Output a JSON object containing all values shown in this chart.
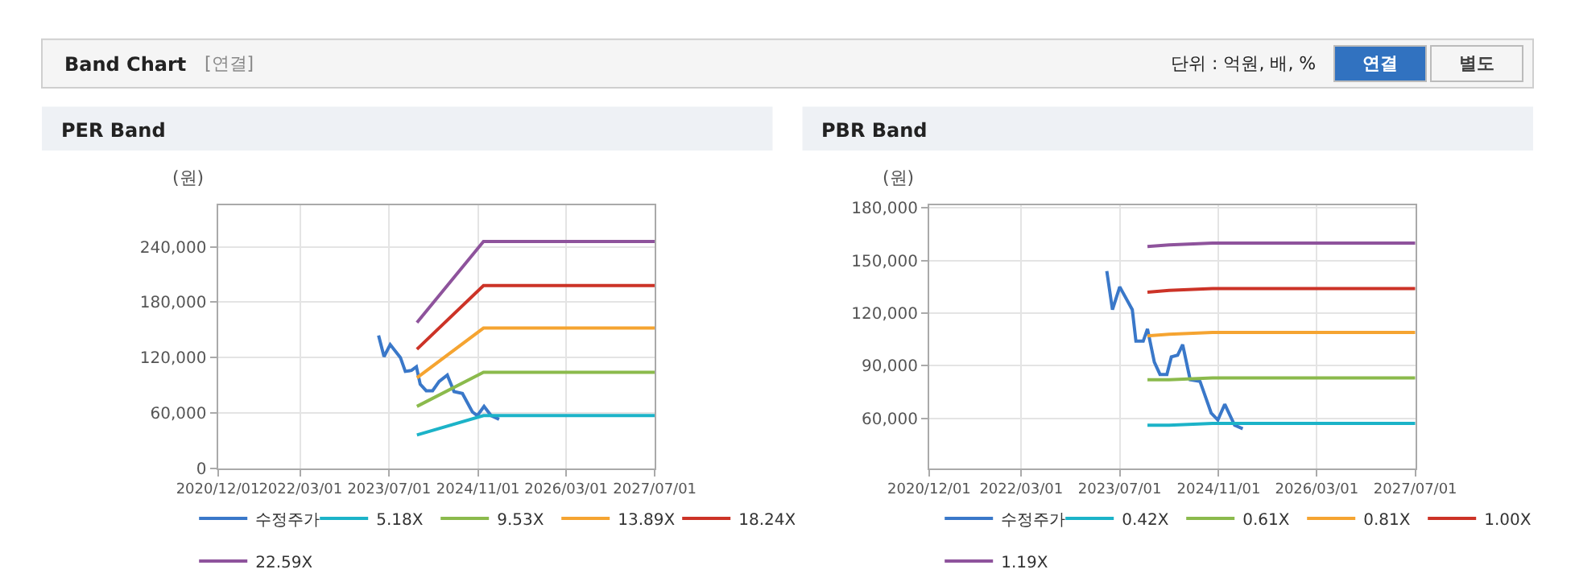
{
  "chart_data": [
    {
      "type": "line",
      "title": "PER Band",
      "ylabel": "(원)",
      "grid": true,
      "legend": "bottom",
      "annotations": [
        "Band Chart",
        "[연결]",
        "단위 : 억원, 배, %",
        "연결",
        "별도"
      ],
      "xlim": [
        "2020-12-01",
        "2027-07-01"
      ],
      "xticks": [
        {
          "value": "2020-12-01",
          "label": "2020/12/01"
        },
        {
          "value": "2022-03-01",
          "label": "2022/03/01"
        },
        {
          "value": "2023-07-01",
          "label": "2023/07/01"
        },
        {
          "value": "2024-11-01",
          "label": "2024/11/01"
        },
        {
          "value": "2026-03-01",
          "label": "2026/03/01"
        },
        {
          "value": "2027-07-01",
          "label": "2027/07/01"
        }
      ],
      "ylim": [
        0,
        285000
      ],
      "yticks": [
        0,
        {
          "value": 60000,
          "label": "60,000"
        },
        {
          "value": 120000,
          "label": "120,000"
        },
        {
          "value": 180000,
          "label": "180,000"
        },
        {
          "value": 240000,
          "label": "240,000"
        }
      ],
      "series": [
        {
          "name": "수정주가",
          "color": "#3a78c9",
          "x": [
            "2023-05-04",
            "2023-06-03",
            "2023-07-07",
            "2023-09-01",
            "2023-09-28",
            "2023-11-01",
            "2023-11-28",
            "2023-12-19",
            "2024-01-21",
            "2024-02-25",
            "2024-04-01",
            "2024-05-16",
            "2024-06-22",
            "2024-08-07",
            "2024-10-01",
            "2024-10-28",
            "2024-12-04",
            "2025-01-12",
            "2025-02-25"
          ],
          "values": [
            144000,
            121000,
            134000,
            120000,
            105000,
            106000,
            110000,
            91000,
            84000,
            84000,
            94000,
            101000,
            83000,
            81000,
            61000,
            57000,
            67000,
            57000,
            53000
          ]
        },
        {
          "name": "5.18X",
          "color": "#1cb3c8",
          "x": [
            "2023-12-01",
            "2024-12-01",
            "2027-07-01"
          ],
          "values": [
            36000,
            57000,
            57000
          ]
        },
        {
          "name": "9.53X",
          "color": "#8bba4c",
          "x": [
            "2023-12-01",
            "2024-12-01",
            "2027-07-01"
          ],
          "values": [
            67000,
            104000,
            104000
          ]
        },
        {
          "name": "13.89X",
          "color": "#f5a431",
          "x": [
            "2023-12-01",
            "2024-12-01",
            "2027-07-01"
          ],
          "values": [
            98000,
            152000,
            152000
          ]
        },
        {
          "name": "18.24X",
          "color": "#cc3327",
          "x": [
            "2023-12-01",
            "2024-12-01",
            "2027-07-01"
          ],
          "values": [
            129000,
            198000,
            198000
          ]
        },
        {
          "name": "22.59X",
          "color": "#8e539c",
          "x": [
            "2023-12-01",
            "2024-12-01",
            "2027-07-01"
          ],
          "values": [
            158000,
            246000,
            246000
          ]
        }
      ]
    },
    {
      "type": "line",
      "title": "PBR Band",
      "ylabel": "(원)",
      "grid": true,
      "legend": "bottom",
      "xlim": [
        "2020-12-01",
        "2027-07-01"
      ],
      "xticks": [
        {
          "value": "2020-12-01",
          "label": "2020/12/01"
        },
        {
          "value": "2022-03-01",
          "label": "2022/03/01"
        },
        {
          "value": "2023-07-01",
          "label": "2023/07/01"
        },
        {
          "value": "2024-11-01",
          "label": "2024/11/01"
        },
        {
          "value": "2026-03-01",
          "label": "2026/03/01"
        },
        {
          "value": "2027-07-01",
          "label": "2027/07/01"
        }
      ],
      "ylim": [
        31500,
        181500
      ],
      "yticks": [
        {
          "value": 60000,
          "label": "60,000"
        },
        {
          "value": 90000,
          "label": "90,000"
        },
        {
          "value": 120000,
          "label": "120,000"
        },
        {
          "value": 150000,
          "label": "150,000"
        },
        {
          "value": 180000,
          "label": "180,000"
        }
      ],
      "series": [
        {
          "name": "수정주가",
          "color": "#3a78c9",
          "x": [
            "2023-04-28",
            "2023-05-26",
            "2023-07-01",
            "2023-09-01",
            "2023-09-19",
            "2023-10-25",
            "2023-11-15",
            "2023-12-19",
            "2024-01-16",
            "2024-02-19",
            "2024-03-12",
            "2024-04-12",
            "2024-05-07",
            "2024-06-13",
            "2024-08-01",
            "2024-09-25",
            "2024-10-28",
            "2024-12-01",
            "2025-01-19",
            "2025-02-28"
          ],
          "values": [
            144000,
            122000,
            135000,
            122000,
            104000,
            104000,
            111000,
            92000,
            85000,
            85000,
            95000,
            96000,
            102000,
            82000,
            81000,
            63000,
            59000,
            68000,
            56000,
            54000
          ]
        },
        {
          "name": "0.42X",
          "color": "#1cb3c8",
          "x": [
            "2023-11-15",
            "2024-03-01",
            "2024-10-01",
            "2027-07-01"
          ],
          "values": [
            56000,
            56000,
            57000,
            57000
          ]
        },
        {
          "name": "0.61X",
          "color": "#8bba4c",
          "x": [
            "2023-11-15",
            "2024-03-01",
            "2024-10-01",
            "2027-07-01"
          ],
          "values": [
            82000,
            82000,
            83000,
            83000
          ]
        },
        {
          "name": "0.81X",
          "color": "#f5a431",
          "x": [
            "2023-11-15",
            "2024-03-01",
            "2024-10-01",
            "2027-07-01"
          ],
          "values": [
            107000,
            108000,
            109000,
            109000
          ]
        },
        {
          "name": "1.00X",
          "color": "#cc3327",
          "x": [
            "2023-11-15",
            "2024-03-01",
            "2024-10-01",
            "2027-07-01"
          ],
          "values": [
            132000,
            133000,
            134000,
            134000
          ]
        },
        {
          "name": "1.19X",
          "color": "#8e539c",
          "x": [
            "2023-11-15",
            "2024-03-01",
            "2024-10-01",
            "2027-07-01"
          ],
          "values": [
            158000,
            159000,
            160000,
            160000
          ]
        }
      ]
    }
  ]
}
